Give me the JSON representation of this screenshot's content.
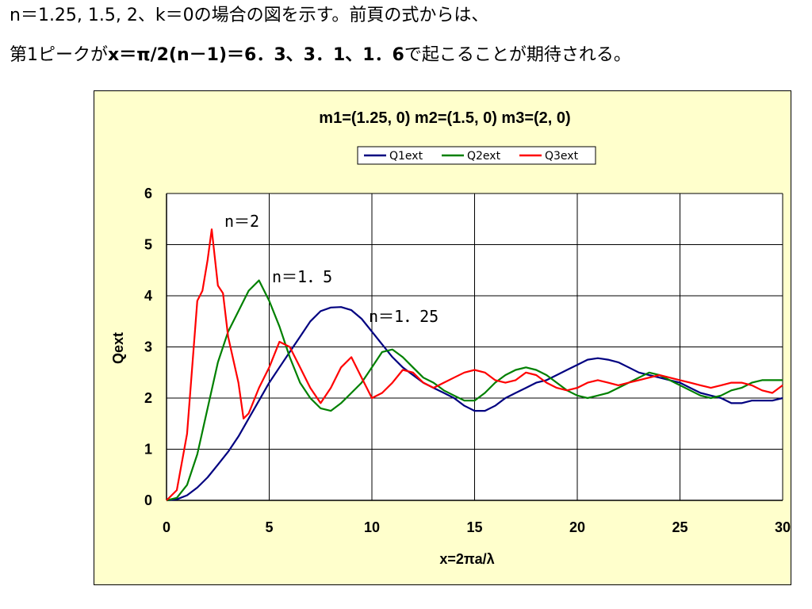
{
  "intro": {
    "line1": "n＝1.25, 1.5, 2、k＝0の場合の図を示す。前頁の式からは、",
    "line2_prefix": "第1ピークが",
    "line2_formula": "x＝π/2(n－1)＝6．3、3．1、1．6",
    "line2_suffix": "で起こることが期待される。"
  },
  "colors": {
    "frame_bg": "#ffffcc",
    "plot_bg": "#ffffff",
    "grid": "#000000",
    "q1": "#000080",
    "q2": "#008000",
    "q3": "#ff0000"
  },
  "chart_data": {
    "type": "line",
    "title": "m1=(1.25, 0)  m2=(1.5, 0)  m3=(2, 0)",
    "xlabel": "x=2πa/λ",
    "ylabel": "Qext",
    "xlim": [
      0,
      30
    ],
    "ylim": [
      0,
      6
    ],
    "xticks": [
      "0",
      "5",
      "10",
      "15",
      "20",
      "25",
      "30"
    ],
    "yticks": [
      "0",
      "1",
      "2",
      "3",
      "4",
      "5",
      "6"
    ],
    "grid": true,
    "legend_position": "top-center",
    "annotations": [
      "n＝2",
      "n＝1．5",
      "n＝1．25"
    ],
    "series": [
      {
        "name": "Q1ext",
        "color": "#000080",
        "points": [
          [
            0,
            0
          ],
          [
            0.5,
            0.02
          ],
          [
            1,
            0.1
          ],
          [
            1.5,
            0.25
          ],
          [
            2,
            0.45
          ],
          [
            2.5,
            0.7
          ],
          [
            3,
            0.95
          ],
          [
            3.5,
            1.25
          ],
          [
            4,
            1.6
          ],
          [
            4.5,
            1.95
          ],
          [
            5,
            2.3
          ],
          [
            5.5,
            2.6
          ],
          [
            6,
            2.9
          ],
          [
            6.5,
            3.2
          ],
          [
            7,
            3.5
          ],
          [
            7.5,
            3.7
          ],
          [
            8,
            3.77
          ],
          [
            8.5,
            3.78
          ],
          [
            9,
            3.72
          ],
          [
            9.5,
            3.55
          ],
          [
            10,
            3.3
          ],
          [
            10.5,
            3.05
          ],
          [
            11,
            2.8
          ],
          [
            11.5,
            2.6
          ],
          [
            12,
            2.45
          ],
          [
            12.5,
            2.3
          ],
          [
            13,
            2.2
          ],
          [
            13.5,
            2.1
          ],
          [
            14,
            2.0
          ],
          [
            14.5,
            1.85
          ],
          [
            15,
            1.75
          ],
          [
            15.5,
            1.75
          ],
          [
            16,
            1.85
          ],
          [
            16.5,
            2.0
          ],
          [
            17,
            2.1
          ],
          [
            17.5,
            2.2
          ],
          [
            18,
            2.3
          ],
          [
            18.5,
            2.35
          ],
          [
            19,
            2.45
          ],
          [
            19.5,
            2.55
          ],
          [
            20,
            2.65
          ],
          [
            20.5,
            2.75
          ],
          [
            21,
            2.78
          ],
          [
            21.5,
            2.75
          ],
          [
            22,
            2.7
          ],
          [
            22.5,
            2.6
          ],
          [
            23,
            2.5
          ],
          [
            23.5,
            2.45
          ],
          [
            24,
            2.4
          ],
          [
            24.5,
            2.35
          ],
          [
            25,
            2.3
          ],
          [
            25.5,
            2.2
          ],
          [
            26,
            2.1
          ],
          [
            26.5,
            2.05
          ],
          [
            27,
            2.0
          ],
          [
            27.5,
            1.9
          ],
          [
            28,
            1.9
          ],
          [
            28.5,
            1.95
          ],
          [
            29,
            1.95
          ],
          [
            29.5,
            1.95
          ],
          [
            30,
            2.0
          ]
        ]
      },
      {
        "name": "Q2ext",
        "color": "#008000",
        "points": [
          [
            0,
            0
          ],
          [
            0.5,
            0.05
          ],
          [
            1,
            0.3
          ],
          [
            1.5,
            0.9
          ],
          [
            2,
            1.8
          ],
          [
            2.5,
            2.7
          ],
          [
            3,
            3.3
          ],
          [
            3.5,
            3.7
          ],
          [
            4,
            4.1
          ],
          [
            4.5,
            4.3
          ],
          [
            5,
            3.9
          ],
          [
            5.5,
            3.4
          ],
          [
            6,
            2.8
          ],
          [
            6.5,
            2.3
          ],
          [
            7,
            2.0
          ],
          [
            7.5,
            1.8
          ],
          [
            8,
            1.75
          ],
          [
            8.5,
            1.9
          ],
          [
            9,
            2.1
          ],
          [
            9.5,
            2.3
          ],
          [
            10,
            2.6
          ],
          [
            10.5,
            2.9
          ],
          [
            11,
            2.95
          ],
          [
            11.5,
            2.8
          ],
          [
            12,
            2.6
          ],
          [
            12.5,
            2.4
          ],
          [
            13,
            2.3
          ],
          [
            13.5,
            2.15
          ],
          [
            14,
            2.05
          ],
          [
            14.5,
            1.95
          ],
          [
            15,
            1.95
          ],
          [
            15.5,
            2.1
          ],
          [
            16,
            2.3
          ],
          [
            16.5,
            2.45
          ],
          [
            17,
            2.55
          ],
          [
            17.5,
            2.6
          ],
          [
            18,
            2.55
          ],
          [
            18.5,
            2.45
          ],
          [
            19,
            2.3
          ],
          [
            19.5,
            2.15
          ],
          [
            20,
            2.05
          ],
          [
            20.5,
            2.0
          ],
          [
            21,
            2.05
          ],
          [
            21.5,
            2.1
          ],
          [
            22,
            2.2
          ],
          [
            22.5,
            2.3
          ],
          [
            23,
            2.4
          ],
          [
            23.5,
            2.5
          ],
          [
            24,
            2.45
          ],
          [
            24.5,
            2.35
          ],
          [
            25,
            2.25
          ],
          [
            25.5,
            2.15
          ],
          [
            26,
            2.05
          ],
          [
            26.5,
            2.0
          ],
          [
            27,
            2.05
          ],
          [
            27.5,
            2.15
          ],
          [
            28,
            2.2
          ],
          [
            28.5,
            2.3
          ],
          [
            29,
            2.35
          ],
          [
            29.5,
            2.35
          ],
          [
            30,
            2.35
          ]
        ]
      },
      {
        "name": "Q3ext",
        "color": "#ff0000",
        "points": [
          [
            0,
            0
          ],
          [
            0.5,
            0.2
          ],
          [
            1,
            1.3
          ],
          [
            1.5,
            3.9
          ],
          [
            1.75,
            4.1
          ],
          [
            2,
            4.7
          ],
          [
            2.2,
            5.3
          ],
          [
            2.5,
            4.2
          ],
          [
            2.75,
            4.05
          ],
          [
            3,
            3.2
          ],
          [
            3.5,
            2.3
          ],
          [
            3.75,
            1.6
          ],
          [
            4,
            1.7
          ],
          [
            4.5,
            2.2
          ],
          [
            5,
            2.6
          ],
          [
            5.5,
            3.1
          ],
          [
            6,
            3.0
          ],
          [
            6.5,
            2.6
          ],
          [
            7,
            2.2
          ],
          [
            7.5,
            1.9
          ],
          [
            8,
            2.2
          ],
          [
            8.5,
            2.6
          ],
          [
            9,
            2.8
          ],
          [
            9.5,
            2.4
          ],
          [
            10,
            2.0
          ],
          [
            10.5,
            2.1
          ],
          [
            11,
            2.3
          ],
          [
            11.5,
            2.55
          ],
          [
            12,
            2.5
          ],
          [
            12.5,
            2.3
          ],
          [
            13,
            2.2
          ],
          [
            13.5,
            2.3
          ],
          [
            14,
            2.4
          ],
          [
            14.5,
            2.5
          ],
          [
            15,
            2.55
          ],
          [
            15.5,
            2.5
          ],
          [
            16,
            2.35
          ],
          [
            16.5,
            2.3
          ],
          [
            17,
            2.35
          ],
          [
            17.5,
            2.5
          ],
          [
            18,
            2.45
          ],
          [
            18.5,
            2.3
          ],
          [
            19,
            2.2
          ],
          [
            19.5,
            2.15
          ],
          [
            20,
            2.2
          ],
          [
            20.5,
            2.3
          ],
          [
            21,
            2.35
          ],
          [
            21.5,
            2.3
          ],
          [
            22,
            2.25
          ],
          [
            22.5,
            2.3
          ],
          [
            23,
            2.35
          ],
          [
            23.5,
            2.4
          ],
          [
            24,
            2.45
          ],
          [
            24.5,
            2.4
          ],
          [
            25,
            2.35
          ],
          [
            25.5,
            2.3
          ],
          [
            26,
            2.25
          ],
          [
            26.5,
            2.2
          ],
          [
            27,
            2.25
          ],
          [
            27.5,
            2.3
          ],
          [
            28,
            2.3
          ],
          [
            28.5,
            2.25
          ],
          [
            29,
            2.15
          ],
          [
            29.5,
            2.1
          ],
          [
            30,
            2.25
          ]
        ]
      }
    ]
  }
}
